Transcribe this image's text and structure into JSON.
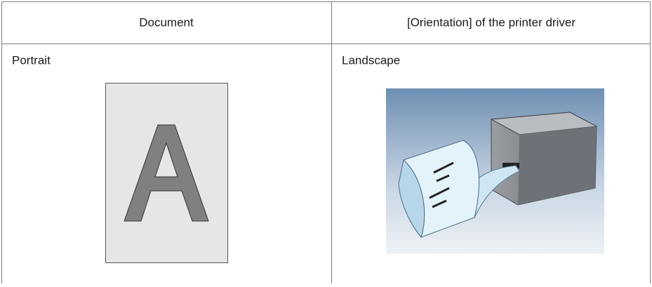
{
  "table": {
    "header": [
      "Document",
      "[Orientation] of the printer driver"
    ],
    "rows": [
      [
        "Portrait",
        "Landscape"
      ]
    ]
  }
}
